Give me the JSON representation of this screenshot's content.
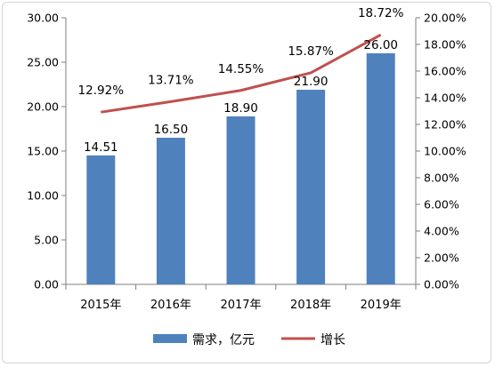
{
  "chart_data": {
    "type": "bar",
    "categories": [
      "2015年",
      "2016年",
      "2017年",
      "2018年",
      "2019年"
    ],
    "series": [
      {
        "name": "需求，亿元",
        "type": "bar",
        "axis": "left",
        "color": "#4F81BD",
        "values": [
          14.51,
          16.5,
          18.9,
          21.9,
          26.0
        ],
        "labels": [
          "14.51",
          "16.50",
          "18.90",
          "21.90",
          "26.00"
        ]
      },
      {
        "name": "增长",
        "type": "line",
        "axis": "right",
        "color": "#C0504D",
        "values": [
          12.92,
          13.71,
          14.55,
          15.87,
          18.72
        ],
        "labels": [
          "12.92%",
          "13.71%",
          "14.55%",
          "15.87%",
          "18.72%"
        ]
      }
    ],
    "y_left": {
      "ylim": [
        0,
        30
      ],
      "ticks": [
        "0.00",
        "5.00",
        "10.00",
        "15.00",
        "20.00",
        "25.00",
        "30.00"
      ]
    },
    "y_right": {
      "ylim": [
        0,
        20
      ],
      "ticks": [
        "0.00%",
        "2.00%",
        "4.00%",
        "6.00%",
        "8.00%",
        "10.00%",
        "12.00%",
        "14.00%",
        "16.00%",
        "18.00%",
        "20.00%"
      ]
    },
    "grid": false,
    "legend_position": "bottom"
  }
}
